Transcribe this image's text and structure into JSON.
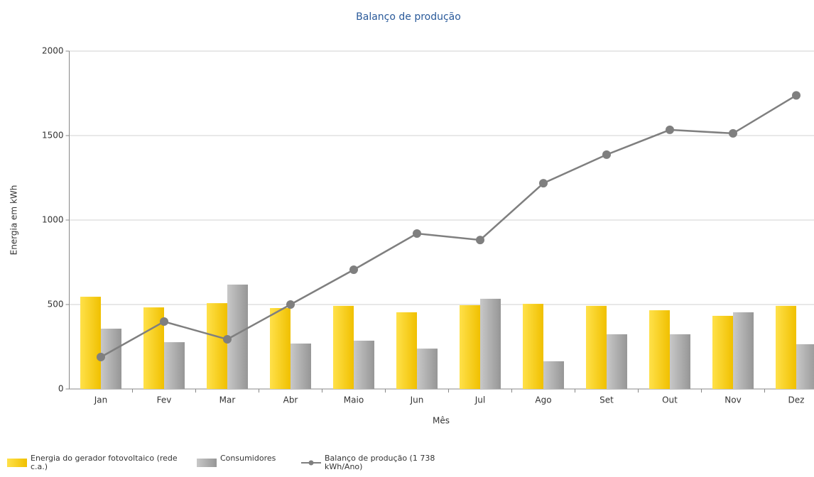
{
  "chart_data": {
    "type": "bar_line",
    "title": "Balanço de produção",
    "x_label": "Mês",
    "y_label": "Energia em kWh",
    "categories": [
      "Jan",
      "Fev",
      "Mar",
      "Abr",
      "Maio",
      "Jun",
      "Jul",
      "Ago",
      "Set",
      "Out",
      "Nov",
      "Dez"
    ],
    "series": [
      {
        "name": "Energia do gerador fotovoltaico (rede c.a.)",
        "type": "bar",
        "color": "#f5c800",
        "values": [
          546,
          483,
          508,
          479,
          492,
          454,
          496,
          504,
          492,
          466,
          433,
          492
        ]
      },
      {
        "name": "Consumidores",
        "type": "bar",
        "color": "#a8a8a8",
        "values": [
          357,
          277,
          618,
          269,
          286,
          239,
          534,
          164,
          324,
          324,
          454,
          265
        ]
      },
      {
        "name": "Balanço de produção (1 738 kWh/Ano)",
        "type": "line",
        "color": "#7f7f7f",
        "values": [
          189,
          399,
          294,
          500,
          706,
          920,
          882,
          1218,
          1387,
          1534,
          1513,
          1738
        ]
      }
    ],
    "ylim": [
      0,
      2000
    ],
    "yticks": [
      0,
      500,
      1000,
      1500,
      2000
    ],
    "grid": true
  }
}
